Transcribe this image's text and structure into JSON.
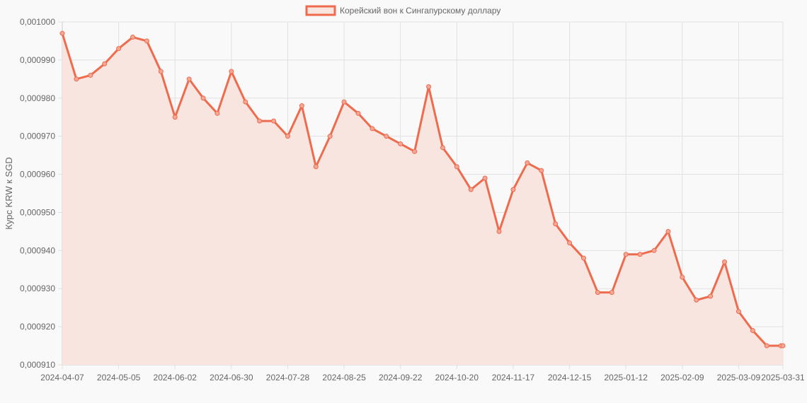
{
  "chart_data": {
    "type": "line",
    "title": "",
    "xlabel": "",
    "ylabel": "Курс KRW к SGD",
    "legend": {
      "position": "top-center",
      "entries": [
        "Корейский вон к Сингапурскому доллару"
      ]
    },
    "grid": true,
    "ylim": [
      0.00091,
      0.001
    ],
    "y_ticks": [
      "0,000910",
      "0,000920",
      "0,000930",
      "0,000940",
      "0,000950",
      "0,000960",
      "0,000970",
      "0,000980",
      "0,000990",
      "0,001000"
    ],
    "x_ticks": [
      "2024-04-07",
      "2024-05-05",
      "2024-06-02",
      "2024-06-30",
      "2024-07-28",
      "2024-08-25",
      "2024-09-22",
      "2024-10-20",
      "2024-11-17",
      "2024-12-15",
      "2025-01-12",
      "2025-02-09",
      "2025-03-09",
      "2025-03-31"
    ],
    "x": [
      "2024-04-07",
      "2024-04-14",
      "2024-04-21",
      "2024-04-28",
      "2024-05-05",
      "2024-05-12",
      "2024-05-19",
      "2024-05-26",
      "2024-06-02",
      "2024-06-09",
      "2024-06-16",
      "2024-06-23",
      "2024-06-30",
      "2024-07-07",
      "2024-07-14",
      "2024-07-21",
      "2024-07-28",
      "2024-08-04",
      "2024-08-11",
      "2024-08-18",
      "2024-08-25",
      "2024-09-01",
      "2024-09-08",
      "2024-09-15",
      "2024-09-22",
      "2024-09-29",
      "2024-10-06",
      "2024-10-13",
      "2024-10-20",
      "2024-10-27",
      "2024-11-03",
      "2024-11-10",
      "2024-11-17",
      "2024-11-24",
      "2024-12-01",
      "2024-12-08",
      "2024-12-15",
      "2024-12-22",
      "2024-12-29",
      "2025-01-05",
      "2025-01-12",
      "2025-01-19",
      "2025-01-26",
      "2025-02-02",
      "2025-02-09",
      "2025-02-16",
      "2025-02-23",
      "2025-03-02",
      "2025-03-09",
      "2025-03-16",
      "2025-03-23",
      "2025-03-30",
      "2025-03-31"
    ],
    "series": [
      {
        "name": "Корейский вон к Сингапурскому доллару",
        "color": "#ee6b4d",
        "fill": "#f9e5e0",
        "values": [
          0.000997,
          0.000985,
          0.000986,
          0.000989,
          0.000993,
          0.000996,
          0.000995,
          0.000987,
          0.000975,
          0.000985,
          0.00098,
          0.000976,
          0.000987,
          0.000979,
          0.000974,
          0.000974,
          0.00097,
          0.000978,
          0.000962,
          0.00097,
          0.000979,
          0.000976,
          0.000972,
          0.00097,
          0.000968,
          0.000966,
          0.000983,
          0.000967,
          0.000962,
          0.000956,
          0.000959,
          0.000945,
          0.000956,
          0.000963,
          0.000961,
          0.000947,
          0.000942,
          0.000938,
          0.000929,
          0.000929,
          0.000939,
          0.000939,
          0.00094,
          0.000945,
          0.000933,
          0.000927,
          0.000928,
          0.000937,
          0.000924,
          0.000919,
          0.000915,
          0.000915,
          0.000915
        ]
      }
    ]
  }
}
